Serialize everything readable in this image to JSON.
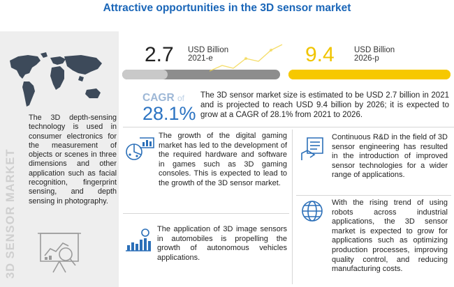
{
  "title": "Attractive opportunities in the 3D sensor market",
  "sidebar": {
    "vertical_label": "3D SENSOR MARKET",
    "description": "The 3D depth-sensing technology is used in consumer electronics for the measurement of objects or scenes in three dimensions and other application such as facial recognition, fingerprint sensing, and depth sensing in photography."
  },
  "stats": {
    "current": {
      "value": "2.7",
      "unit_line1": "USD Billion",
      "unit_line2": "2021-e"
    },
    "projected": {
      "value": "9.4",
      "unit_line1": "USD Billion",
      "unit_line2": "2026-p"
    }
  },
  "cagr": {
    "label": "CAGR",
    "of": "of",
    "value": "28.1%",
    "description": "The 3D sensor market size is estimated to be USD 2.7 billion in 2021 and is projected to reach USD 9.4 billion by 2026; it is expected to grow at a CAGR of 28.1% from 2021 to 2026."
  },
  "highlights": {
    "gaming": "The growth of the digital gaming market has led to the development of the required hardware and software in games such as 3D gaming consoles. This is expected to lead to the growth of the 3D sensor market.",
    "automobiles": "The application of 3D image sensors in automobiles is propelling the growth of autonomous vehicles applications.",
    "rnd": "Continuous R&D in the field of 3D sensor engineering has resulted in the introduction of improved sensor technologies for a wider range of applications.",
    "robots": "With the rising trend of using robots across industrial applications, the 3D sensor market is expected to grow for applications such as optimizing production processes, improving quality control, and reducing manufacturing costs."
  },
  "colors": {
    "title_blue": "#1a66b8",
    "accent_yellow": "#f6c800",
    "icon_blue": "#2b6fb8",
    "sidebar_bg": "#eeeeee"
  },
  "progress": {
    "current_fraction": 0.287,
    "projected_fraction": 1.0
  },
  "icons": [
    "world-map-icon",
    "analysis-chart-icon",
    "gaming-analytics-icon",
    "bar-growth-icon",
    "document-hand-icon",
    "globe-icon"
  ]
}
